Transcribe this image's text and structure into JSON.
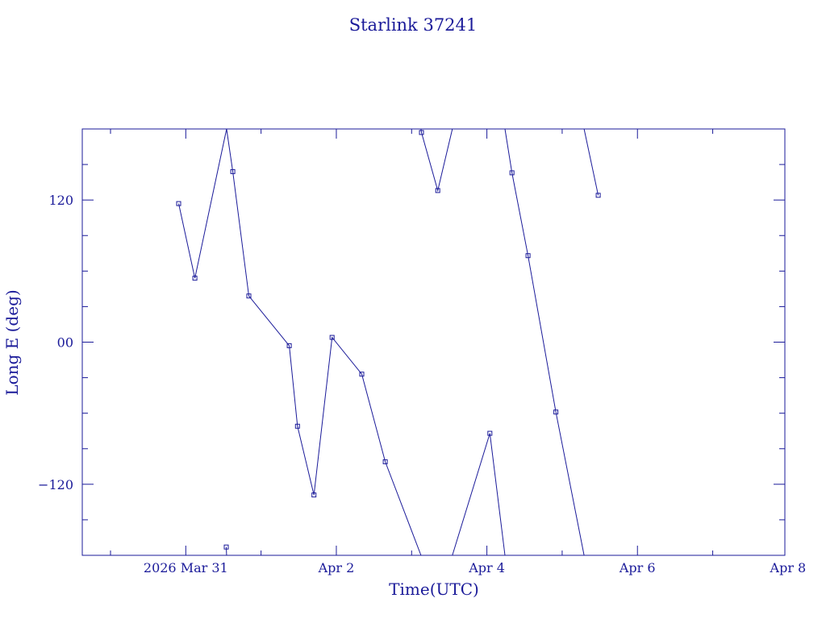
{
  "chart_data": {
    "type": "line",
    "title": "Starlink 37241",
    "xlabel": "Time(UTC)",
    "ylabel": "Long E (deg)",
    "line_color": "#1a1a99",
    "x_ticks": [
      "2026 Mar 31",
      "Apr  2",
      "Apr  4",
      "Apr  6",
      "Apr  8"
    ],
    "y_ticks": [
      "120",
      "00",
      "−120"
    ],
    "xlim": [
      "2026-03-29 15:00",
      "2026-04-07 23:00"
    ],
    "ylim": [
      -180,
      180
    ],
    "segments": [
      [
        {
          "x": "2026-03-30 21:44",
          "y": 117
        },
        {
          "x": "2026-03-31 02:54",
          "y": 54
        },
        {
          "x": "2026-03-31 13:00",
          "y": 180
        }
      ],
      [
        {
          "x": "2026-03-31 13:00",
          "y": -180
        },
        {
          "x": "2026-03-31 12:54",
          "y": -173
        }
      ],
      [
        {
          "x": "2026-03-31 13:00",
          "y": 180
        },
        {
          "x": "2026-03-31 15:00",
          "y": 144
        },
        {
          "x": "2026-03-31 20:07",
          "y": 39
        },
        {
          "x": "2026-04-01 09:00",
          "y": -3
        },
        {
          "x": "2026-04-01 11:37",
          "y": -71
        },
        {
          "x": "2026-04-01 16:52",
          "y": -129
        },
        {
          "x": "2026-04-01 22:39",
          "y": 4
        },
        {
          "x": "2026-04-02 08:06",
          "y": -27
        },
        {
          "x": "2026-04-02 15:36",
          "y": -101
        },
        {
          "x": "2026-04-03 03:00",
          "y": -180
        }
      ],
      [
        {
          "x": "2026-04-03 03:00",
          "y": 180
        },
        {
          "x": "2026-04-03 03:09",
          "y": 177
        },
        {
          "x": "2026-04-03 08:20",
          "y": 128
        },
        {
          "x": "2026-04-03 13:00",
          "y": 180
        }
      ],
      [
        {
          "x": "2026-04-03 13:00",
          "y": -180
        },
        {
          "x": "2026-04-04 00:57",
          "y": -77
        },
        {
          "x": "2026-04-04 05:45",
          "y": -180
        }
      ],
      [
        {
          "x": "2026-04-04 05:45",
          "y": 180
        },
        {
          "x": "2026-04-04 08:00",
          "y": 143
        },
        {
          "x": "2026-04-04 13:07",
          "y": 73
        },
        {
          "x": "2026-04-04 22:00",
          "y": -59
        },
        {
          "x": "2026-04-05 07:00",
          "y": -180
        }
      ],
      [
        {
          "x": "2026-04-05 07:00",
          "y": 180
        },
        {
          "x": "2026-04-05 11:30",
          "y": 124
        }
      ]
    ]
  }
}
